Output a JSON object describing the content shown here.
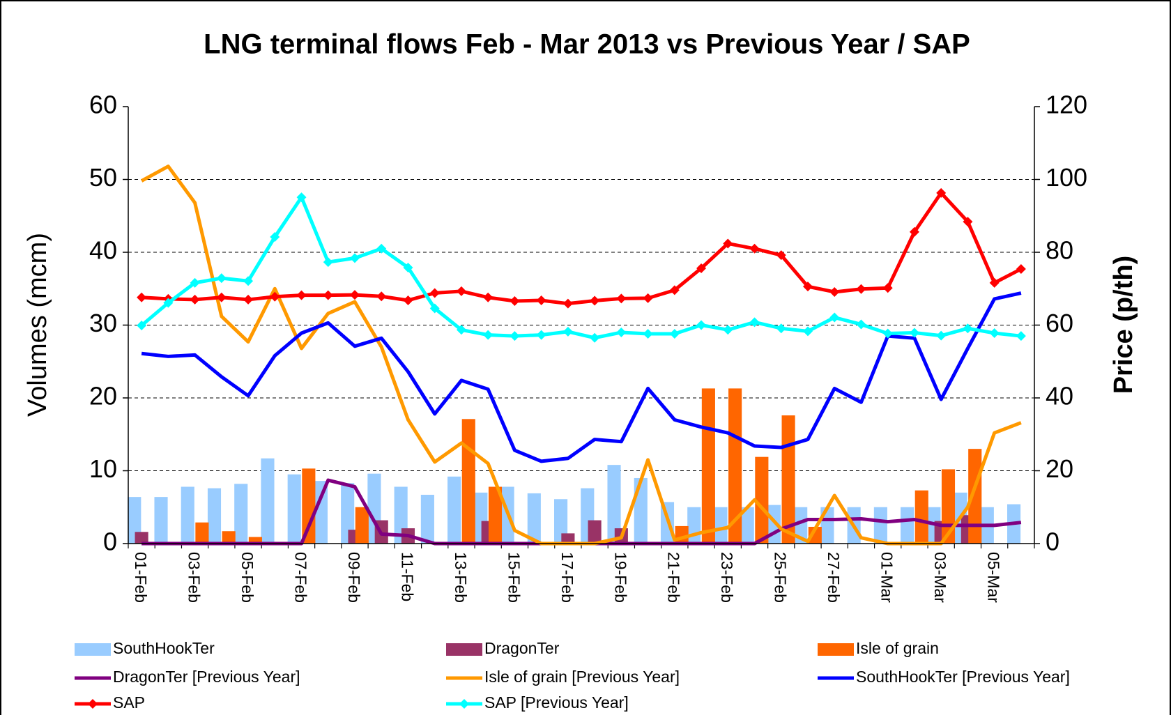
{
  "chart_data": {
    "type": "combo",
    "title": "LNG terminal flows Feb - Mar 2013 vs Previous Year / SAP",
    "y_label": "Volumes (mcm)",
    "y2_label": "Price (p/th)",
    "categories": [
      "01-Feb",
      null,
      "03-Feb",
      null,
      "05-Feb",
      null,
      "07-Feb",
      null,
      "09-Feb",
      null,
      "11-Feb",
      null,
      "13-Feb",
      null,
      "15-Feb",
      null,
      "17-Feb",
      null,
      "19-Feb",
      null,
      "21-Feb",
      null,
      "23-Feb",
      null,
      "25-Feb",
      null,
      "27-Feb",
      null,
      "01-Mar",
      null,
      "03-Mar",
      null,
      "05-Mar",
      null
    ],
    "ylim": [
      0,
      60
    ],
    "yticks": [
      0,
      10,
      20,
      30,
      40,
      50,
      60
    ],
    "y2lim": [
      0,
      120
    ],
    "y2ticks": [
      0,
      20,
      40,
      60,
      80,
      100,
      120
    ],
    "grid": true,
    "legend": "bottom",
    "series": [
      {
        "name": "SouthHookTer",
        "type": "bar",
        "color": "#99ccff",
        "values": [
          6.4,
          6.4,
          7.8,
          7.6,
          8.2,
          11.7,
          9.5,
          8.6,
          8.3,
          9.6,
          7.8,
          6.7,
          9.2,
          7.0,
          7.8,
          6.9,
          6.1,
          7.6,
          10.8,
          9.0,
          5.7,
          5.0,
          5.0,
          5.0,
          5.3,
          5.0,
          5.0,
          5.0,
          5.0,
          5.0,
          5.0,
          7.0,
          5.0,
          5.4
        ]
      },
      {
        "name": "DragonTer",
        "type": "bar",
        "color": "#993366",
        "values": [
          1.6,
          0,
          0,
          0,
          0,
          0,
          0,
          0,
          1.9,
          3.2,
          2.1,
          0,
          0,
          3.1,
          0,
          0,
          1.4,
          3.2,
          2.1,
          0,
          0,
          0,
          0,
          0,
          0,
          0,
          0,
          0,
          0,
          0,
          3.1,
          3.9,
          0,
          0
        ]
      },
      {
        "name": "Isle of grain",
        "type": "bar",
        "color": "#ff6600",
        "values": [
          0,
          0,
          2.9,
          1.7,
          0.9,
          0,
          10.3,
          0,
          5.0,
          0,
          0,
          0,
          17.1,
          7.8,
          0,
          0,
          0,
          0,
          0,
          0,
          2.4,
          21.3,
          21.3,
          11.9,
          17.6,
          2.3,
          0,
          0,
          0,
          7.3,
          10.2,
          13.0,
          0,
          0
        ]
      },
      {
        "name": "DragonTer [Previous Year]",
        "type": "line",
        "color": "#800080",
        "values": [
          0,
          0,
          0,
          0,
          0,
          0,
          0,
          8.7,
          7.8,
          1.3,
          1.1,
          0,
          0,
          0,
          0,
          0,
          0,
          0,
          0,
          0,
          0,
          0,
          0,
          0,
          2.0,
          3.3,
          3.3,
          3.4,
          3.0,
          3.3,
          2.5,
          2.5,
          2.5,
          2.9
        ]
      },
      {
        "name": "Isle of grain [Previous Year]",
        "type": "line",
        "color": "#ff9900",
        "values": [
          49.8,
          51.8,
          46.8,
          31.2,
          27.7,
          35.0,
          26.8,
          31.6,
          33.2,
          27.0,
          17.0,
          11.2,
          13.8,
          11.0,
          1.8,
          0,
          0,
          0,
          0.8,
          11.5,
          0.5,
          1.5,
          2.2,
          6.0,
          2.0,
          0.3,
          6.6,
          0.8,
          0,
          0,
          0,
          5.0,
          15.2,
          16.6
        ]
      },
      {
        "name": "SouthHookTer [Previous Year]",
        "type": "line",
        "color": "#0000ff",
        "values": [
          26.1,
          25.7,
          25.9,
          22.9,
          20.3,
          25.8,
          28.9,
          30.3,
          27.1,
          28.2,
          23.6,
          17.8,
          22.4,
          21.2,
          12.8,
          11.3,
          11.7,
          14.3,
          14.0,
          21.3,
          17.0,
          16.0,
          15.2,
          13.4,
          13.2,
          14.3,
          21.3,
          19.4,
          28.5,
          28.2,
          19.8,
          26.8,
          33.6,
          34.4
        ]
      },
      {
        "name": "SAP",
        "type": "line",
        "marker": "diamond",
        "axis": "y2",
        "color": "#ff0000",
        "values": [
          67.6,
          67.2,
          67.0,
          67.6,
          67.0,
          67.8,
          68.2,
          68.2,
          68.3,
          67.9,
          66.8,
          68.8,
          69.3,
          67.6,
          66.6,
          66.8,
          65.9,
          66.7,
          67.3,
          67.4,
          69.6,
          75.6,
          82.4,
          81.0,
          79.2,
          70.6,
          69.1,
          69.9,
          70.2,
          85.6,
          96.3,
          88.4,
          71.6,
          75.4
        ]
      },
      {
        "name": "SAP [Previous Year]",
        "type": "line",
        "marker": "diamond",
        "axis": "y2",
        "color": "#00ffff",
        "values": [
          59.9,
          66.1,
          71.6,
          72.9,
          72.1,
          84.2,
          95.1,
          77.3,
          78.4,
          81.0,
          75.8,
          64.6,
          58.7,
          57.3,
          57.0,
          57.3,
          58.2,
          56.5,
          58.0,
          57.6,
          57.6,
          60.0,
          58.7,
          60.8,
          59.1,
          58.3,
          62.1,
          60.2,
          57.7,
          57.9,
          57.1,
          59.1,
          57.8,
          57.0
        ]
      }
    ]
  }
}
